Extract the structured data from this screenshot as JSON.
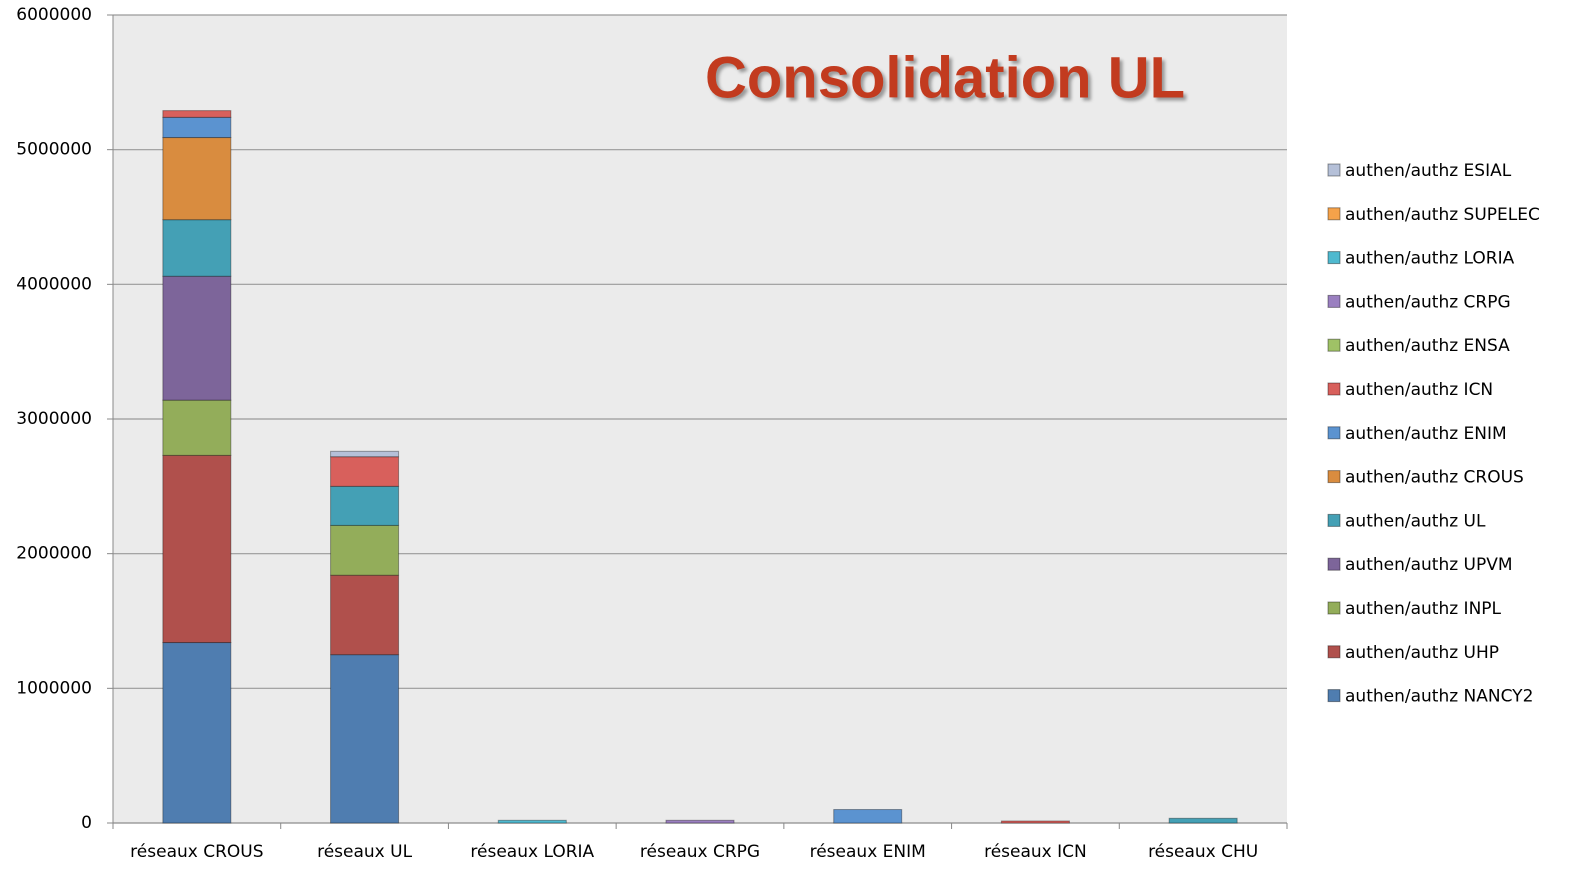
{
  "chart_data": {
    "type": "stacked_bar",
    "title": "Consolidation UL",
    "categories": [
      "réseaux CROUS",
      "réseaux UL",
      "réseaux LORIA",
      "réseaux CRPG",
      "réseaux ENIM",
      "réseaux ICN",
      "réseaux CHU"
    ],
    "series": [
      {
        "name": "authen/authz NANCY2",
        "color": "#4f7db0",
        "values": [
          1340000,
          1250000,
          0,
          0,
          0,
          0,
          0
        ]
      },
      {
        "name": "authen/authz UHP",
        "color": "#b0504c",
        "values": [
          1390000,
          590000,
          0,
          0,
          0,
          0,
          0
        ]
      },
      {
        "name": "authen/authz INPL",
        "color": "#93ad5a",
        "values": [
          410000,
          370000,
          0,
          0,
          0,
          0,
          0
        ]
      },
      {
        "name": "authen/authz UPVM",
        "color": "#7d659a",
        "values": [
          920000,
          0,
          0,
          0,
          0,
          0,
          0
        ]
      },
      {
        "name": "authen/authz UL",
        "color": "#44a0b5",
        "values": [
          420000,
          290000,
          0,
          0,
          0,
          0,
          35000
        ]
      },
      {
        "name": "authen/authz CROUS",
        "color": "#d98c3f",
        "values": [
          610000,
          0,
          0,
          0,
          0,
          0,
          0
        ]
      },
      {
        "name": "authen/authz ENIM",
        "color": "#5b93d0",
        "values": [
          150000,
          0,
          0,
          0,
          100000,
          0,
          0
        ]
      },
      {
        "name": "authen/authz ICN",
        "color": "#d8605c",
        "values": [
          50000,
          220000,
          0,
          0,
          0,
          15000,
          0
        ]
      },
      {
        "name": "authen/authz ENSA",
        "color": "#9fc266",
        "values": [
          0,
          0,
          0,
          0,
          0,
          0,
          0
        ]
      },
      {
        "name": "authen/authz CRPG",
        "color": "#9a7fc0",
        "values": [
          0,
          0,
          0,
          20000,
          0,
          0,
          0
        ]
      },
      {
        "name": "authen/authz LORIA",
        "color": "#4fb9cf",
        "values": [
          0,
          0,
          20000,
          0,
          0,
          0,
          0
        ]
      },
      {
        "name": "authen/authz SUPELEC",
        "color": "#f5a24a",
        "values": [
          0,
          0,
          0,
          0,
          0,
          0,
          0
        ]
      },
      {
        "name": "authen/authz ESIAL",
        "color": "#b5c0d8",
        "values": [
          0,
          40000,
          0,
          0,
          0,
          0,
          0
        ]
      }
    ],
    "ylim": [
      0,
      6000000
    ],
    "yticks": [
      0,
      1000000,
      2000000,
      3000000,
      4000000,
      5000000,
      6000000
    ],
    "grid": true,
    "legend": "right"
  }
}
